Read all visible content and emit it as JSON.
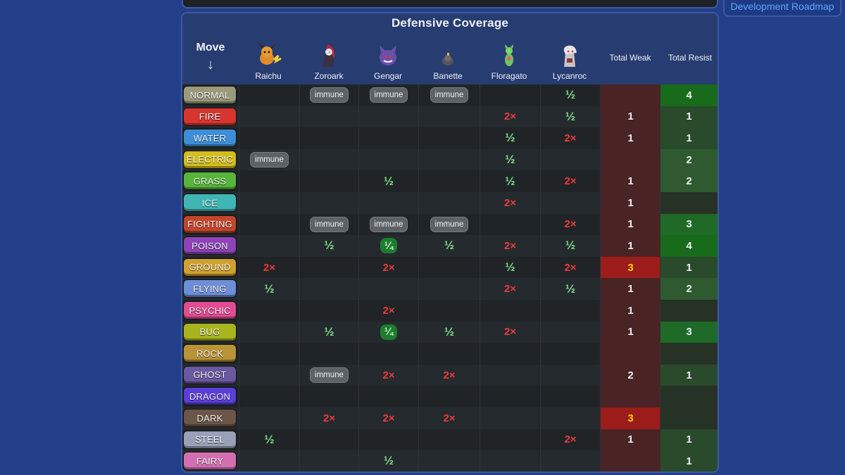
{
  "nav": {
    "roadmap_link": "Development Roadmap"
  },
  "title": "Defensive Coverage",
  "move_header": "Move",
  "move_arrow": "↓",
  "team": [
    {
      "name": "Raichu",
      "icon": "raichu-sprite-icon"
    },
    {
      "name": "Zoroark",
      "icon": "zoroark-sprite-icon"
    },
    {
      "name": "Gengar",
      "icon": "gengar-sprite-icon"
    },
    {
      "name": "Banette",
      "icon": "banette-sprite-icon"
    },
    {
      "name": "Floragato",
      "icon": "floragato-sprite-icon"
    },
    {
      "name": "Lycanroc",
      "icon": "lycanroc-sprite-icon"
    }
  ],
  "total_weak_label": "Total Weak",
  "total_resist_label": "Total Resist",
  "rows": [
    {
      "type": "NORMAL",
      "color": "#9a9a7c",
      "cells": [
        "",
        "immune",
        "immune",
        "immune",
        "",
        "½"
      ],
      "weak": "",
      "resist": "4"
    },
    {
      "type": "FIRE",
      "color": "#d8352e",
      "cells": [
        "",
        "",
        "",
        "",
        "2×",
        "½"
      ],
      "weak": "1",
      "resist": "1"
    },
    {
      "type": "WATER",
      "color": "#3c8fd6",
      "cells": [
        "",
        "",
        "",
        "",
        "½",
        "2×"
      ],
      "weak": "1",
      "resist": "1"
    },
    {
      "type": "ELECTRIC",
      "color": "#d4bd1e",
      "cells": [
        "immune",
        "",
        "",
        "",
        "½",
        ""
      ],
      "weak": "",
      "resist": "2"
    },
    {
      "type": "GRASS",
      "color": "#56b53a",
      "cells": [
        "",
        "",
        "½",
        "",
        "½",
        "2×"
      ],
      "weak": "1",
      "resist": "2"
    },
    {
      "type": "ICE",
      "color": "#3fb6b4",
      "cells": [
        "",
        "",
        "",
        "",
        "2×",
        ""
      ],
      "weak": "1",
      "resist": ""
    },
    {
      "type": "FIGHTING",
      "color": "#c2462c",
      "cells": [
        "",
        "immune",
        "immune",
        "immune",
        "",
        "2×"
      ],
      "weak": "1",
      "resist": "3"
    },
    {
      "type": "POISON",
      "color": "#8e43b8",
      "cells": [
        "",
        "½",
        "¼",
        "½",
        "2×",
        "½"
      ],
      "weak": "1",
      "resist": "4"
    },
    {
      "type": "GROUND",
      "color": "#cfa12e",
      "cells": [
        "2×",
        "",
        "2×",
        "",
        "½",
        "2×"
      ],
      "weak": "3",
      "resist": "1"
    },
    {
      "type": "FLYING",
      "color": "#6f8ed8",
      "cells": [
        "½",
        "",
        "",
        "",
        "2×",
        "½"
      ],
      "weak": "1",
      "resist": "2"
    },
    {
      "type": "PSYCHIC",
      "color": "#e04b94",
      "cells": [
        "",
        "",
        "2×",
        "",
        "",
        ""
      ],
      "weak": "1",
      "resist": ""
    },
    {
      "type": "BUG",
      "color": "#a8b41e",
      "cells": [
        "",
        "½",
        "¼",
        "½",
        "2×",
        ""
      ],
      "weak": "1",
      "resist": "3"
    },
    {
      "type": "ROCK",
      "color": "#b89437",
      "cells": [
        "",
        "",
        "",
        "",
        "",
        ""
      ],
      "weak": "",
      "resist": ""
    },
    {
      "type": "GHOST",
      "color": "#6a58a0",
      "cells": [
        "",
        "immune",
        "2×",
        "2×",
        "",
        ""
      ],
      "weak": "2",
      "resist": "1"
    },
    {
      "type": "DRAGON",
      "color": "#5a3fd8",
      "cells": [
        "",
        "",
        "",
        "",
        "",
        ""
      ],
      "weak": "",
      "resist": ""
    },
    {
      "type": "DARK",
      "color": "#6b5648",
      "cells": [
        "",
        "2×",
        "2×",
        "2×",
        "",
        ""
      ],
      "weak": "3",
      "resist": ""
    },
    {
      "type": "STEEL",
      "color": "#9aa0b8",
      "cells": [
        "½",
        "",
        "",
        "",
        "",
        "2×"
      ],
      "weak": "1",
      "resist": "1"
    },
    {
      "type": "FAIRY",
      "color": "#d36fb0",
      "cells": [
        "",
        "",
        "½",
        "",
        "",
        ""
      ],
      "weak": "",
      "resist": "1"
    }
  ],
  "colors": {
    "weak_bg": "#4a2324",
    "weak_bg_hot": "#9c1c1a",
    "resist_levels": [
      "#263226",
      "#2a4a2c",
      "#2f5a2f",
      "#1f6a26",
      "#186b1a"
    ],
    "total_hot_text": "#ffd400"
  }
}
